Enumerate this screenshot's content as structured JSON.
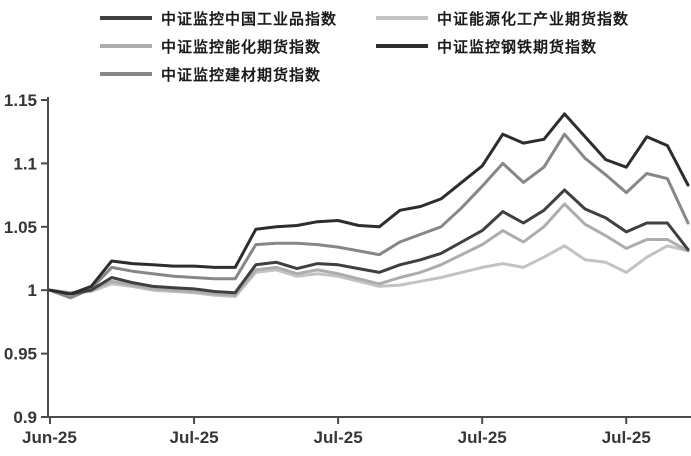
{
  "chart_data": {
    "type": "line",
    "title": "",
    "xlabel": "",
    "ylabel": "",
    "grid": false,
    "legend_position": "top",
    "ylim": [
      0.9,
      1.15
    ],
    "y_ticks": [
      {
        "value": 1.15,
        "label": "1.15"
      },
      {
        "value": 1.1,
        "label": "1.1"
      },
      {
        "value": 1.05,
        "label": "1.05"
      },
      {
        "value": 1.0,
        "label": "1"
      },
      {
        "value": 0.95,
        "label": "0.95"
      },
      {
        "value": 0.9,
        "label": "0.9"
      }
    ],
    "x_ticks": [
      {
        "index": 0,
        "label": "Jun-25"
      },
      {
        "index": 7,
        "label": "Jul-25"
      },
      {
        "index": 14,
        "label": "Jul-25"
      },
      {
        "index": 21,
        "label": "Jul-25"
      },
      {
        "index": 28,
        "label": "Jul-25"
      }
    ],
    "n_points": 32,
    "axis_color": "#4a4a4a",
    "series": [
      {
        "id": "energy-chem-industry-index",
        "name": "中证能源化工产业期货指数",
        "color": "#c3c3c3",
        "values": [
          1,
          0.998,
          0.999,
          1.005,
          1.003,
          1,
          0.999,
          0.998,
          0.996,
          0.995,
          1.014,
          1.016,
          1.011,
          1.013,
          1.011,
          1.007,
          1.003,
          1.004,
          1.007,
          1.01,
          1.014,
          1.018,
          1.021,
          1.018,
          1.026,
          1.035,
          1.024,
          1.022,
          1.014,
          1.026,
          1.035,
          1.031
        ]
      },
      {
        "id": "energy-chem-futures-index",
        "name": "中证监控能化期货指数",
        "color": "#adadad",
        "values": [
          1,
          0.998,
          1,
          1.007,
          1.004,
          1.001,
          1,
          0.999,
          0.997,
          0.996,
          1.016,
          1.018,
          1.013,
          1.016,
          1.013,
          1.009,
          1.005,
          1.01,
          1.014,
          1.02,
          1.028,
          1.036,
          1.047,
          1.038,
          1.05,
          1.068,
          1.052,
          1.043,
          1.033,
          1.04,
          1.04,
          1.031
        ]
      },
      {
        "id": "building-materials-futures-index",
        "name": "中证监控建材期货指数",
        "color": "#878787",
        "values": [
          1,
          0.994,
          1.001,
          1.018,
          1.015,
          1.013,
          1.011,
          1.01,
          1.009,
          1.009,
          1.036,
          1.037,
          1.037,
          1.036,
          1.034,
          1.031,
          1.028,
          1.038,
          1.044,
          1.05,
          1.065,
          1.082,
          1.1,
          1.085,
          1.097,
          1.123,
          1.104,
          1.091,
          1.077,
          1.092,
          1.088,
          1.053
        ]
      },
      {
        "id": "china-industrial-products-index",
        "name": "中证监控中国工业品指数",
        "color": "#404040",
        "values": [
          1,
          0.997,
          1,
          1.01,
          1.006,
          1.003,
          1.002,
          1.001,
          0.999,
          0.998,
          1.02,
          1.022,
          1.017,
          1.021,
          1.02,
          1.017,
          1.014,
          1.02,
          1.024,
          1.029,
          1.038,
          1.047,
          1.062,
          1.053,
          1.063,
          1.079,
          1.064,
          1.057,
          1.046,
          1.053,
          1.053,
          1.032
        ]
      },
      {
        "id": "steel-futures-index",
        "name": "中证监控钢铁期货指数",
        "color": "#2d2d2d",
        "values": [
          1,
          0.997,
          1.003,
          1.023,
          1.021,
          1.02,
          1.019,
          1.019,
          1.018,
          1.018,
          1.048,
          1.05,
          1.051,
          1.054,
          1.055,
          1.051,
          1.05,
          1.063,
          1.066,
          1.072,
          1.085,
          1.098,
          1.123,
          1.116,
          1.119,
          1.139,
          1.121,
          1.103,
          1.097,
          1.121,
          1.114,
          1.083
        ]
      }
    ],
    "legend_order": [
      3,
      0,
      1,
      4,
      2
    ]
  }
}
